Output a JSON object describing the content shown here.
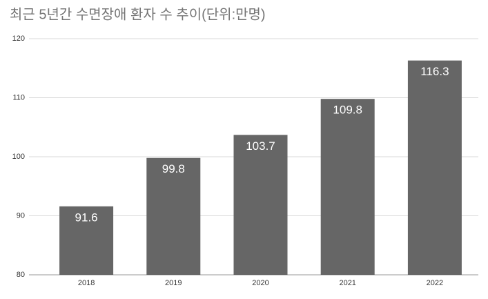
{
  "chart_data": {
    "type": "bar",
    "title": "최근 5년간 수면장애 환자 수 추이(단위:만명)",
    "categories": [
      "2018",
      "2019",
      "2020",
      "2021",
      "2022"
    ],
    "values": [
      91.6,
      99.8,
      103.7,
      109.8,
      116.3
    ],
    "color": "#666666",
    "ylim": [
      80,
      120
    ],
    "yticks": [
      80,
      90,
      100,
      110,
      120
    ],
    "grid": true
  }
}
